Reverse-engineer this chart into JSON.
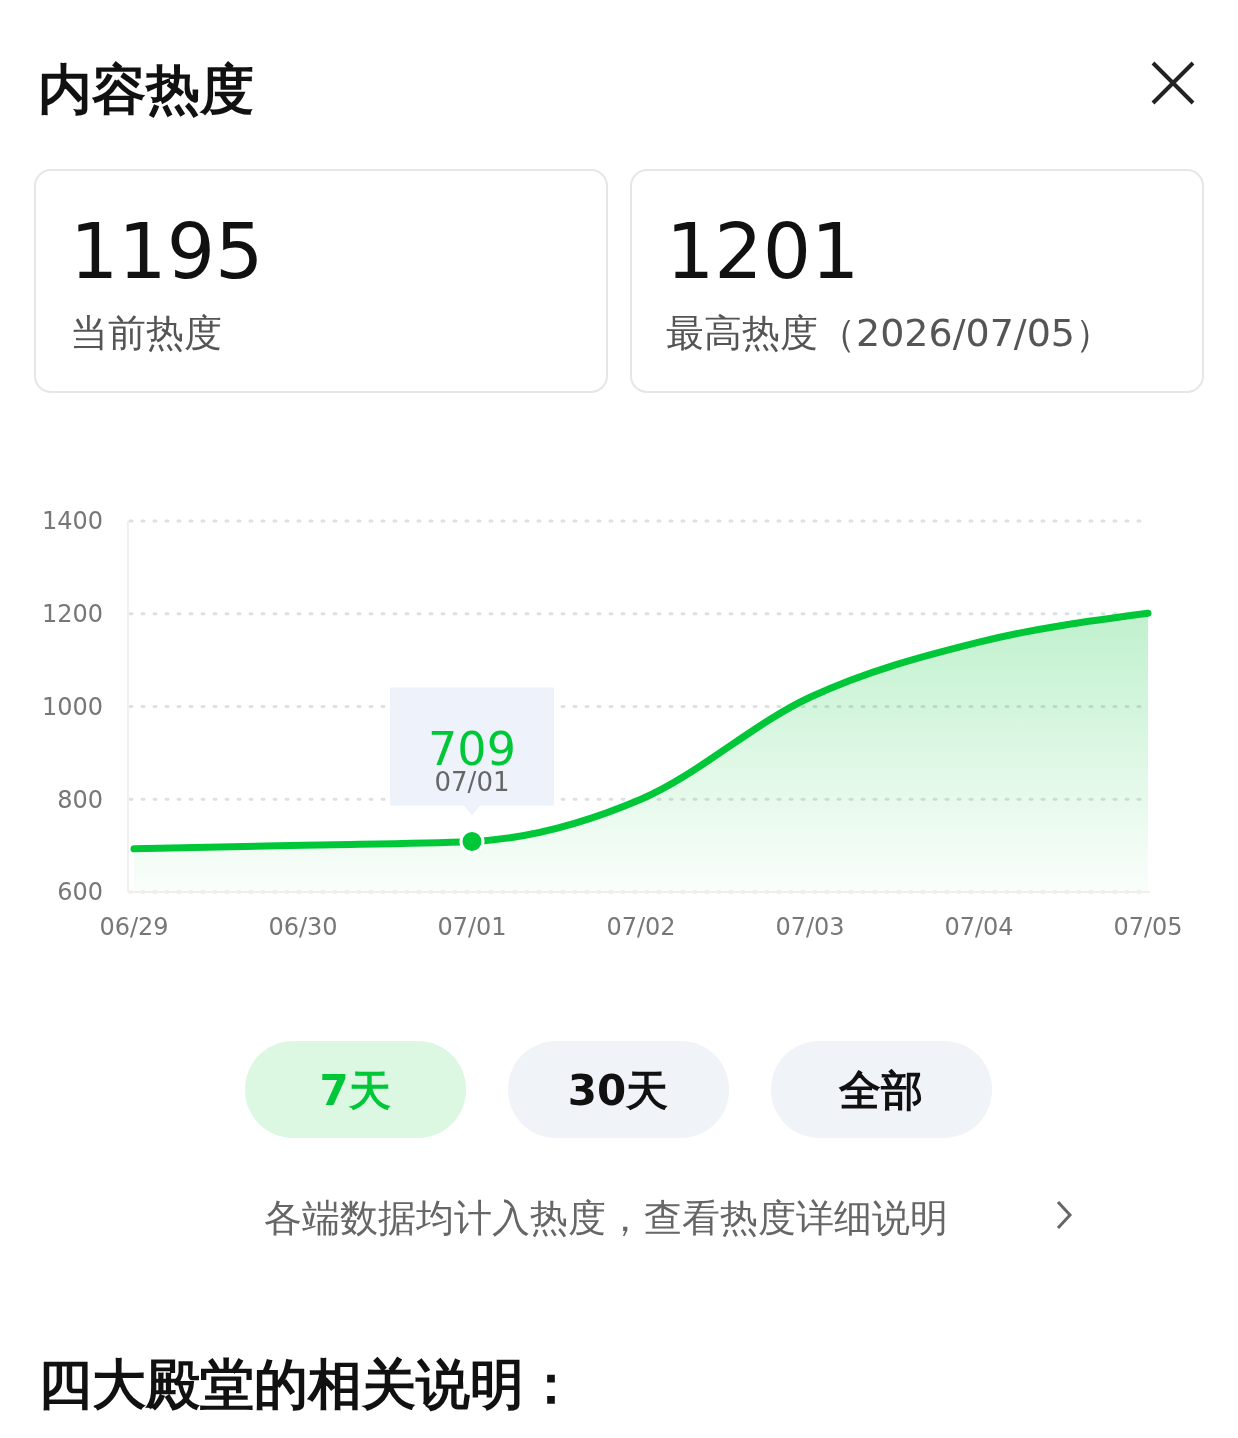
{
  "chart_data": {
    "type": "area",
    "title": "内容热度",
    "categories": [
      "06/29",
      "06/30",
      "07/01",
      "07/02",
      "07/03",
      "07/04",
      "07/05"
    ],
    "values": [
      693,
      701,
      709,
      800,
      1020,
      1139,
      1201
    ],
    "color": "#00c738",
    "ylim": [
      600,
      1400
    ],
    "yticks": [
      600,
      800,
      1000,
      1200,
      1400
    ],
    "grid": "y",
    "annotations": [
      "1195",
      "当前热度",
      "1201",
      "最高热度（2026/07/05）",
      "7天",
      "30天",
      "全部",
      "各端数据均计入热度，查看热度详细说明",
      "四大殿堂的相关说明：",
      {
        "text": "709",
        "x": "07/01",
        "y": 709
      }
    ]
  }
}
